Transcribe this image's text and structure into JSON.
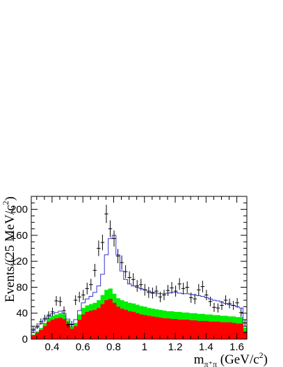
{
  "chart_data": {
    "type": "histogram",
    "xlabel": {
      "main": "m",
      "subscript": "π⁺π",
      "units_prefix": " (GeV/c",
      "units_sup": "2",
      "units_suffix": ")"
    },
    "ylabel": {
      "main": "Events/(25 MeV/c",
      "sup": "2",
      "suffix": ")"
    },
    "xlim": [
      0.265,
      1.665
    ],
    "ylim": [
      0,
      220
    ],
    "x_ticks": [
      {
        "value": 0.4,
        "label": "0.4"
      },
      {
        "value": 0.6,
        "label": "0.6"
      },
      {
        "value": 0.8,
        "label": "0.8"
      },
      {
        "value": 1.0,
        "label": "1"
      },
      {
        "value": 1.2,
        "label": "1.2"
      },
      {
        "value": 1.4,
        "label": "1.4"
      },
      {
        "value": 1.6,
        "label": "1.6"
      }
    ],
    "y_ticks": [
      {
        "value": 0,
        "label": "0"
      },
      {
        "value": 40,
        "label": "40"
      },
      {
        "value": 80,
        "label": "80"
      },
      {
        "value": 120,
        "label": "120"
      },
      {
        "value": 160,
        "label": "160"
      },
      {
        "value": 200,
        "label": "200"
      }
    ],
    "bin_width": 0.025,
    "bin_start": 0.265,
    "colors": {
      "red_component": "#ff0000",
      "green_component": "#00ee00",
      "fit_line": "#3333cc",
      "data_points": "#000000"
    },
    "series": [
      {
        "style": "red-fill",
        "values": [
          6,
          10,
          14,
          20,
          27,
          30,
          32,
          33,
          31,
          24,
          16,
          20,
          30,
          38,
          42,
          44,
          45,
          48,
          54,
          60,
          62,
          56,
          50,
          47,
          45,
          43,
          42,
          40,
          38,
          37,
          36,
          35,
          34,
          33,
          32,
          32,
          31,
          31,
          30,
          30,
          30,
          29,
          29,
          28,
          28,
          28,
          27,
          27,
          27,
          26,
          26,
          26,
          25,
          24,
          24,
          12
        ]
      },
      {
        "style": "green-fill",
        "values": [
          7,
          12,
          17,
          25,
          33,
          36,
          38,
          40,
          38,
          29,
          20,
          25,
          38,
          48,
          52,
          54,
          56,
          60,
          68,
          76,
          78,
          70,
          63,
          60,
          58,
          56,
          55,
          53,
          51,
          50,
          48,
          47,
          46,
          45,
          44,
          43,
          43,
          42,
          42,
          41,
          41,
          40,
          40,
          39,
          39,
          38,
          38,
          37,
          37,
          36,
          36,
          35,
          35,
          34,
          34,
          18
        ]
      },
      {
        "style": "fit-histogram",
        "values": [
          13,
          18,
          24,
          30,
          35,
          39,
          41,
          43,
          40,
          31,
          22,
          30,
          44,
          56,
          62,
          66,
          72,
          82,
          100,
          130,
          155,
          160,
          130,
          105,
          92,
          85,
          82,
          80,
          78,
          76,
          74,
          72,
          71,
          70,
          70,
          71,
          72,
          72,
          71,
          70,
          70,
          69,
          68,
          67,
          66,
          64,
          62,
          60,
          59,
          57,
          55,
          53,
          52,
          50,
          48,
          25
        ]
      }
    ],
    "points": {
      "x": [
        0.2775,
        0.3025,
        0.3275,
        0.3525,
        0.3775,
        0.4025,
        0.4275,
        0.4525,
        0.4775,
        0.5025,
        0.5275,
        0.5525,
        0.5775,
        0.6025,
        0.6275,
        0.6525,
        0.6775,
        0.7025,
        0.7275,
        0.7525,
        0.7775,
        0.8025,
        0.8275,
        0.8525,
        0.8775,
        0.9025,
        0.9275,
        0.9525,
        0.9775,
        1.0025,
        1.0275,
        1.0525,
        1.0775,
        1.1025,
        1.1275,
        1.1525,
        1.1775,
        1.2025,
        1.2275,
        1.2525,
        1.2775,
        1.3025,
        1.3275,
        1.3525,
        1.3775,
        1.4025,
        1.4275,
        1.4525,
        1.4775,
        1.5025,
        1.5275,
        1.5525,
        1.5775,
        1.6025,
        1.6275,
        1.6525
      ],
      "y": [
        15,
        20,
        27,
        32,
        37,
        42,
        59,
        58,
        44,
        22,
        23,
        60,
        65,
        68,
        78,
        84,
        106,
        140,
        149,
        193,
        170,
        155,
        128,
        118,
        104,
        95,
        92,
        82,
        84,
        76,
        72,
        71,
        74,
        65,
        68,
        75,
        79,
        74,
        85,
        78,
        80,
        64,
        62,
        76,
        81,
        68,
        58,
        49,
        48,
        52,
        60,
        55,
        52,
        56,
        41,
        25
      ],
      "yerr": [
        4,
        4.5,
        5,
        5.5,
        6,
        6.5,
        7.5,
        7.5,
        6.5,
        4.5,
        5,
        7.5,
        8,
        8,
        9,
        9,
        10,
        12,
        12,
        14,
        13,
        12.5,
        11,
        11,
        10,
        9.5,
        9.5,
        9,
        9,
        9,
        8.5,
        8.5,
        8.5,
        8,
        8,
        8.5,
        9,
        8.5,
        9,
        9,
        9,
        8,
        8,
        9,
        9,
        8,
        7.5,
        7,
        7,
        7,
        7.5,
        7.5,
        7,
        7.5,
        6.5,
        5
      ]
    }
  }
}
